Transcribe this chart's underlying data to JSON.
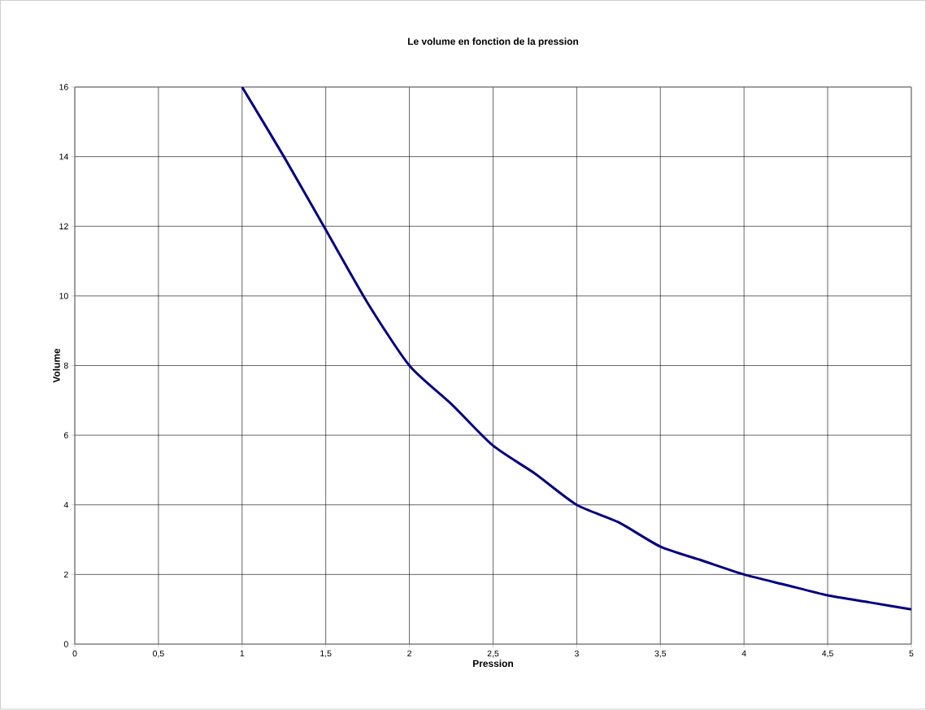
{
  "chart_data": {
    "type": "line",
    "title": "Le volume en fonction de la pression",
    "xlabel": "Pression",
    "ylabel": "Volume",
    "x": [
      1,
      1.25,
      1.5,
      1.75,
      2,
      2.25,
      2.5,
      2.75,
      3,
      3.25,
      3.5,
      3.75,
      4,
      4.25,
      4.5,
      4.75,
      5
    ],
    "series": [
      {
        "color": "#000080",
        "values": [
          16,
          14,
          11.9,
          9.8,
          8,
          6.9,
          5.7,
          4.9,
          4,
          3.5,
          2.8,
          2.4,
          2,
          1.7,
          1.4,
          1.2,
          1
        ]
      }
    ],
    "xlim": [
      0,
      5
    ],
    "ylim": [
      0,
      16
    ],
    "xticks": [
      0,
      {
        "value": 0.5,
        "label": "0,5"
      },
      1,
      {
        "value": 1.5,
        "label": "1,5"
      },
      2,
      {
        "value": 2.5,
        "label": "2,5"
      },
      3,
      {
        "value": 3.5,
        "label": "3,5"
      },
      4,
      {
        "value": 4.5,
        "label": "4,5"
      },
      5
    ],
    "yticks": [
      0,
      2,
      4,
      6,
      8,
      10,
      12,
      14,
      16
    ],
    "grid": true,
    "marker": "none",
    "line_style": "solid"
  }
}
